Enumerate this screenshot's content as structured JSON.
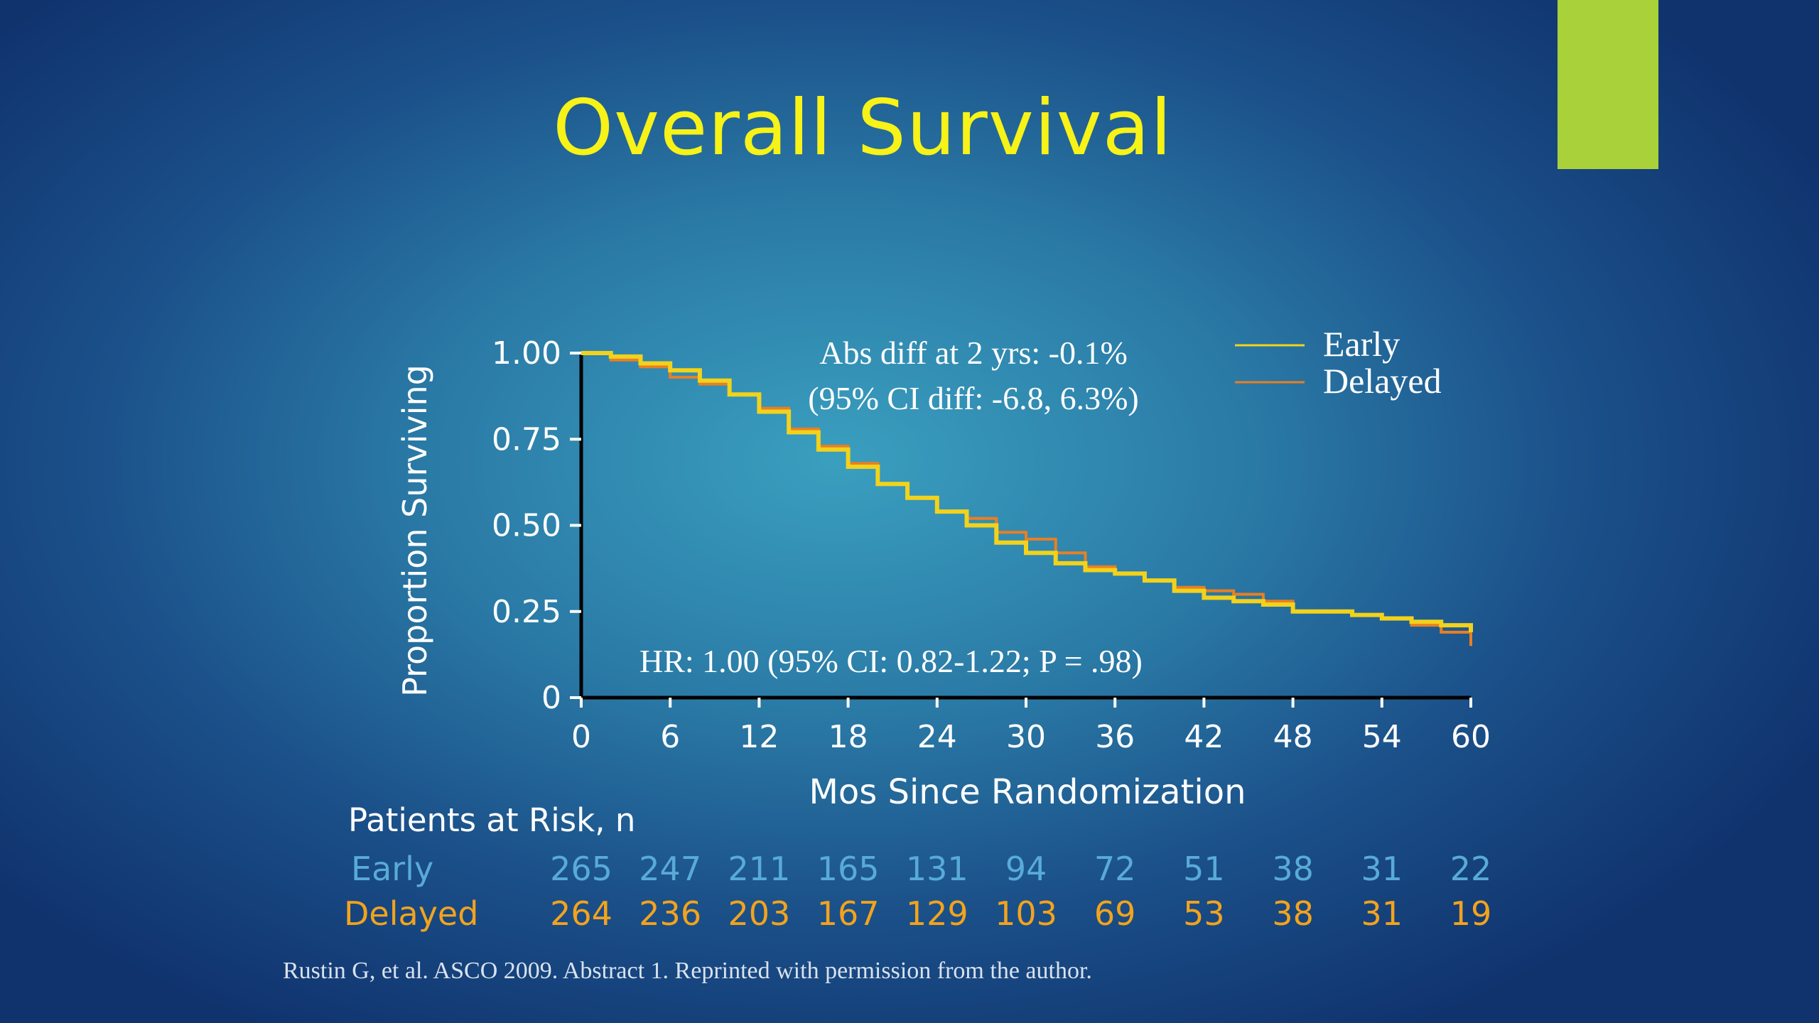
{
  "slide": {
    "title": "Overall Survival",
    "accent_color": "#a8d13a",
    "title_color": "#f7f217",
    "citation": "Rustin G, et al. ASCO 2009. Abstract 1. Reprinted with permission from the author."
  },
  "chart_data": {
    "type": "line",
    "xlabel": "Mos Since Randomization",
    "ylabel": "Proportion Surviving",
    "xlim": [
      0,
      60
    ],
    "ylim": [
      0,
      1
    ],
    "x_ticks": [
      0,
      6,
      12,
      18,
      24,
      30,
      36,
      42,
      48,
      54,
      60
    ],
    "y_ticks": [
      0,
      0.25,
      0.5,
      0.75,
      1.0
    ],
    "y_tick_labels": [
      "0",
      "0.25",
      "0.50",
      "0.75",
      "1.00"
    ],
    "legend": {
      "placement": "top-right"
    },
    "annotations": [
      "Abs diff at 2 yrs: -0.1%",
      "(95% CI diff: -6.8, 6.3%)",
      "HR: 1.00 (95% CI: 0.82-1.22; P = .98)"
    ],
    "series": [
      {
        "name": "Early",
        "color": "#f2d21b",
        "x": [
          0,
          2,
          4,
          6,
          8,
          10,
          12,
          14,
          16,
          18,
          20,
          22,
          24,
          26,
          28,
          30,
          32,
          34,
          36,
          38,
          40,
          42,
          44,
          46,
          48,
          50,
          52,
          54,
          56,
          58,
          60
        ],
        "y": [
          1.0,
          0.99,
          0.97,
          0.95,
          0.92,
          0.88,
          0.83,
          0.77,
          0.72,
          0.67,
          0.62,
          0.58,
          0.54,
          0.5,
          0.45,
          0.42,
          0.39,
          0.37,
          0.36,
          0.34,
          0.31,
          0.29,
          0.28,
          0.27,
          0.25,
          0.25,
          0.24,
          0.23,
          0.22,
          0.21,
          0.19
        ]
      },
      {
        "name": "Delayed",
        "color": "#e97f22",
        "x": [
          0,
          2,
          4,
          6,
          8,
          10,
          12,
          14,
          16,
          18,
          20,
          22,
          24,
          26,
          28,
          30,
          32,
          34,
          36,
          38,
          40,
          42,
          44,
          46,
          48,
          50,
          52,
          54,
          56,
          58,
          60
        ],
        "y": [
          1.0,
          0.98,
          0.96,
          0.93,
          0.91,
          0.88,
          0.84,
          0.78,
          0.73,
          0.68,
          0.62,
          0.58,
          0.54,
          0.52,
          0.48,
          0.46,
          0.42,
          0.38,
          0.36,
          0.34,
          0.32,
          0.31,
          0.3,
          0.28,
          0.25,
          0.25,
          0.24,
          0.23,
          0.21,
          0.19,
          0.15
        ]
      }
    ],
    "patients_at_risk": {
      "header": "Patients at Risk, n",
      "rows": [
        {
          "label": "Early",
          "values": [
            265,
            247,
            211,
            165,
            131,
            94,
            72,
            51,
            38,
            31,
            22
          ]
        },
        {
          "label": "Delayed",
          "values": [
            264,
            236,
            203,
            167,
            129,
            103,
            69,
            53,
            38,
            31,
            19
          ]
        }
      ]
    }
  }
}
